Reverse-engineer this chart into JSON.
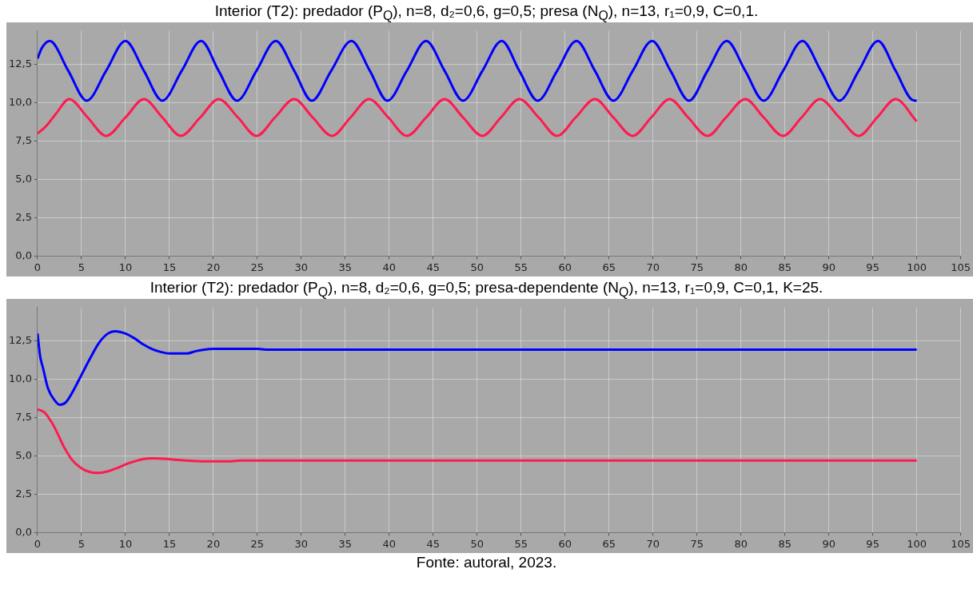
{
  "chart_data": [
    {
      "type": "line",
      "title": "Interior (T2): predador (P$_{Q}$), n=8, d₂=0,6, g=0,5; presa (N$_{Q}$), n=13, r₁=0,9, C=0,1.",
      "xlim": [
        0,
        105
      ],
      "xticks": [
        0,
        5,
        10,
        15,
        20,
        25,
        30,
        35,
        40,
        45,
        50,
        55,
        60,
        65,
        70,
        75,
        80,
        85,
        90,
        95,
        100,
        105
      ],
      "ylim": [
        0,
        14.7
      ],
      "yticks": [
        {
          "value": 0,
          "label": "0,0"
        },
        {
          "value": 2.5,
          "label": "2,5"
        },
        {
          "value": 5,
          "label": "5,0"
        },
        {
          "value": 7.5,
          "label": "7,5"
        },
        {
          "value": 10,
          "label": "10,0"
        },
        {
          "value": 12.5,
          "label": "12,5"
        }
      ],
      "grid": true,
      "series": [
        {
          "color": "#0000ff",
          "x": [
            0,
            0.5,
            1.4,
            3.5,
            5.6,
            7.8,
            10.0,
            12.1,
            14.2,
            16.4,
            18.6,
            20.6,
            22.7,
            24.9,
            27.1,
            29.2,
            31.2,
            33.4,
            35.7,
            37.8,
            39.8,
            42.0,
            44.2,
            46.3,
            48.4,
            50.6,
            52.8,
            54.8,
            56.9,
            59.1,
            61.3,
            63.4,
            65.5,
            67.7,
            69.9,
            72.0,
            74.1,
            76.2,
            78.4,
            80.5,
            82.6,
            84.8,
            87.0,
            89.1,
            91.2,
            93.4,
            95.6,
            97.6,
            99.5,
            100
          ],
          "values": [
            12.9,
            13.6,
            14.05,
            12.1,
            10.15,
            12.1,
            14.05,
            12.1,
            10.15,
            12.1,
            14.05,
            12.1,
            10.15,
            12.1,
            14.05,
            12.1,
            10.15,
            12.1,
            14.05,
            12.1,
            10.15,
            12.1,
            14.05,
            12.1,
            10.15,
            12.1,
            14.05,
            12.1,
            10.15,
            12.1,
            14.05,
            12.1,
            10.15,
            12.1,
            14.05,
            12.1,
            10.15,
            12.1,
            14.05,
            12.1,
            10.15,
            12.1,
            14.05,
            12.1,
            10.15,
            12.1,
            14.05,
            12.1,
            10.2,
            10.15
          ]
        },
        {
          "color": "#ff1a4f",
          "x": [
            0,
            1,
            2.1,
            3.6,
            5.7,
            7.8,
            10.0,
            12.1,
            14.2,
            16.3,
            18.5,
            20.6,
            22.8,
            24.9,
            27.0,
            29.2,
            31.3,
            33.5,
            35.6,
            37.7,
            39.9,
            42.0,
            44.2,
            46.3,
            48.4,
            50.6,
            52.7,
            54.8,
            57.0,
            59.1,
            61.2,
            63.4,
            65.5,
            67.7,
            69.8,
            71.9,
            74.0,
            76.2,
            78.3,
            80.5,
            82.6,
            84.8,
            86.9,
            89.0,
            91.2,
            93.4,
            95.5,
            97.6,
            100
          ],
          "values": [
            8.0,
            8.5,
            9.3,
            10.25,
            9.05,
            7.85,
            9.05,
            10.25,
            9.05,
            7.85,
            9.05,
            10.25,
            9.05,
            7.85,
            9.05,
            10.25,
            9.05,
            7.85,
            9.05,
            10.25,
            9.05,
            7.85,
            9.05,
            10.25,
            9.05,
            7.85,
            9.05,
            10.25,
            9.05,
            7.85,
            9.05,
            10.25,
            9.05,
            7.85,
            9.05,
            10.25,
            9.05,
            7.85,
            9.05,
            10.25,
            9.05,
            7.85,
            9.05,
            10.25,
            9.05,
            7.85,
            9.05,
            10.25,
            8.8
          ]
        }
      ]
    },
    {
      "type": "line",
      "title": "Interior (T2): predador (P$_{Q}$), n=8, d₂=0,6, g=0,5; presa-dependente (N$_{Q}$), n=13, r₁=0,9, C=0,1, K=25.",
      "annotations": [
        "Fonte: autoral, 2023."
      ],
      "xlim": [
        0,
        105
      ],
      "xticks": [
        0,
        5,
        10,
        15,
        20,
        25,
        30,
        35,
        40,
        45,
        50,
        55,
        60,
        65,
        70,
        75,
        80,
        85,
        90,
        95,
        100,
        105
      ],
      "ylim": [
        0,
        14.7
      ],
      "yticks": [
        {
          "value": 0,
          "label": "0,0"
        },
        {
          "value": 2.5,
          "label": "2,5"
        },
        {
          "value": 5,
          "label": "5,0"
        },
        {
          "value": 7.5,
          "label": "7,5"
        },
        {
          "value": 10,
          "label": "10,0"
        },
        {
          "value": 12.5,
          "label": "12,5"
        }
      ],
      "grid": true,
      "series": [
        {
          "color": "#0000ff",
          "x": [
            0,
            0.3,
            0.6,
            1.2,
            2.0,
            2.5,
            3.2,
            4,
            5,
            6,
            7,
            8,
            8.8,
            10,
            11,
            12,
            13,
            14,
            15,
            17,
            18,
            20,
            25,
            26,
            30,
            40,
            50,
            60,
            70,
            80,
            90,
            100
          ],
          "values": [
            13.0,
            11.5,
            10.8,
            9.4,
            8.6,
            8.35,
            8.5,
            9.2,
            10.3,
            11.4,
            12.4,
            13.0,
            13.15,
            13.0,
            12.7,
            12.3,
            12.0,
            11.8,
            11.7,
            11.7,
            11.85,
            12.0,
            12.0,
            11.95,
            11.95,
            11.95,
            11.95,
            11.95,
            11.95,
            11.95,
            11.95,
            11.95
          ]
        },
        {
          "color": "#ff1a4f",
          "x": [
            0,
            0.8,
            1.5,
            2,
            3,
            4,
            5,
            6,
            7,
            8,
            9,
            10,
            11,
            12,
            13,
            15,
            17,
            19,
            22,
            23,
            30,
            40,
            50,
            60,
            70,
            80,
            90,
            100
          ],
          "values": [
            8.05,
            7.85,
            7.3,
            6.8,
            5.6,
            4.7,
            4.2,
            3.95,
            3.9,
            4.0,
            4.2,
            4.45,
            4.65,
            4.8,
            4.85,
            4.8,
            4.7,
            4.65,
            4.65,
            4.7,
            4.7,
            4.7,
            4.7,
            4.7,
            4.7,
            4.7,
            4.7,
            4.7
          ]
        }
      ]
    }
  ]
}
